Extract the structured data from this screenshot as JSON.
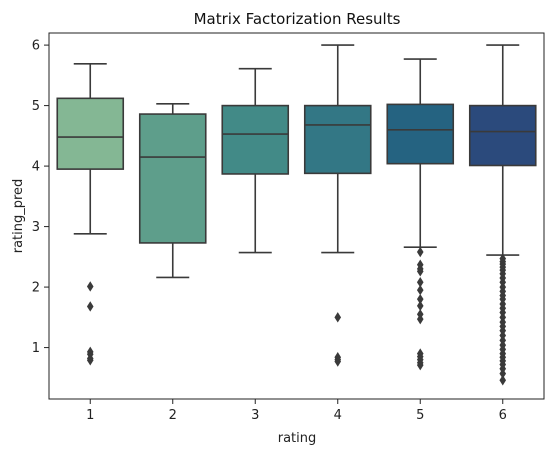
{
  "chart_data": {
    "type": "box",
    "title": "Matrix Factorization Results",
    "xlabel": "rating",
    "ylabel": "rating_pred",
    "categories": [
      "1",
      "2",
      "3",
      "4",
      "5",
      "6"
    ],
    "ylim": [
      0.15,
      6.2
    ],
    "yticks": [
      "1",
      "2",
      "3",
      "4",
      "5",
      "6"
    ],
    "grid": false,
    "boxes": [
      {
        "category": "1",
        "color": "#84b794",
        "whisker_low": 2.88,
        "q1": 3.95,
        "median": 4.48,
        "q3": 5.12,
        "whisker_high": 5.69,
        "outliers": [
          2.01,
          1.68,
          0.93,
          0.89,
          0.82,
          0.79
        ]
      },
      {
        "category": "2",
        "color": "#5e9e8b",
        "whisker_low": 2.16,
        "q1": 2.73,
        "median": 4.15,
        "q3": 4.86,
        "whisker_high": 5.03,
        "outliers": []
      },
      {
        "category": "3",
        "color": "#428a87",
        "whisker_low": 2.57,
        "q1": 3.87,
        "median": 4.53,
        "q3": 5.0,
        "whisker_high": 5.61,
        "outliers": []
      },
      {
        "category": "4",
        "color": "#337785",
        "whisker_low": 2.57,
        "q1": 3.88,
        "median": 4.68,
        "q3": 5.0,
        "whisker_high": 6.0,
        "outliers": [
          1.5,
          0.84,
          0.8,
          0.77
        ]
      },
      {
        "category": "5",
        "color": "#256381",
        "whisker_low": 2.66,
        "q1": 4.04,
        "median": 4.6,
        "q3": 5.02,
        "whisker_high": 5.77,
        "outliers": [
          2.58,
          2.37,
          2.3,
          2.26,
          2.08,
          1.95,
          1.8,
          1.69,
          1.55,
          1.47,
          0.9,
          0.85,
          0.8,
          0.75,
          0.71
        ]
      },
      {
        "category": "6",
        "color": "#2b4a7c",
        "whisker_low": 2.53,
        "q1": 4.01,
        "median": 4.57,
        "q3": 5.0,
        "whisker_high": 6.0,
        "outliers": [
          2.47,
          2.42,
          2.38,
          2.33,
          2.28,
          2.22,
          2.15,
          2.08,
          2.0,
          1.93,
          1.86,
          1.8,
          1.72,
          1.65,
          1.58,
          1.5,
          1.42,
          1.35,
          1.28,
          1.2,
          1.12,
          1.04,
          0.97,
          0.9,
          0.84,
          0.78,
          0.72,
          0.65,
          0.57,
          0.46
        ]
      }
    ]
  }
}
